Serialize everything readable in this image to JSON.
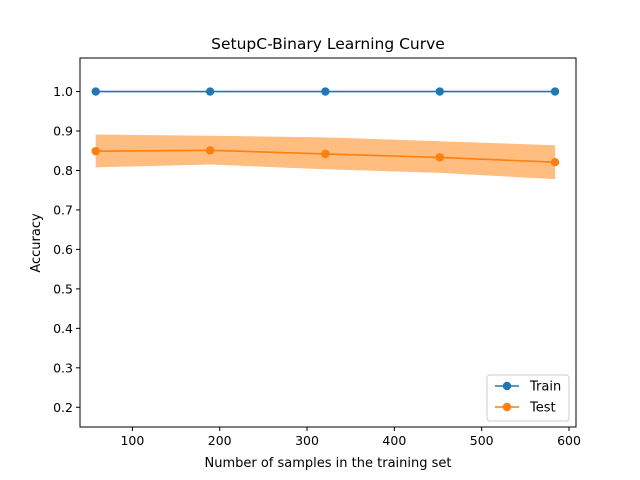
{
  "chart_data": {
    "type": "line",
    "title": "SetupC-Binary Learning Curve",
    "xlabel": "Number of samples in the training set",
    "ylabel": "Accuracy",
    "xlim": [
      40,
      608
    ],
    "ylim": [
      0.15,
      1.085
    ],
    "xticks": [
      100,
      200,
      300,
      400,
      500,
      600
    ],
    "yticks": [
      0.2,
      0.3,
      0.4,
      0.5,
      0.6,
      0.7,
      0.8,
      0.9,
      1.0
    ],
    "ytick_labels": [
      "0.2",
      "0.3",
      "0.4",
      "0.5",
      "0.6",
      "0.7",
      "0.8",
      "0.9",
      "1.0"
    ],
    "grid": false,
    "legend_position": "bottom-right",
    "x": [
      58,
      189,
      321,
      452,
      584
    ],
    "series": [
      {
        "name": "Train",
        "color": "#1f77b4",
        "values": [
          1.0,
          1.0,
          1.0,
          1.0,
          1.0
        ],
        "band_lower": [
          1.0,
          1.0,
          1.0,
          1.0,
          1.0
        ],
        "band_upper": [
          1.0,
          1.0,
          1.0,
          1.0,
          1.0
        ]
      },
      {
        "name": "Test",
        "color": "#ff7f0e",
        "band_color": "#ffbb78",
        "values": [
          0.849,
          0.851,
          0.842,
          0.833,
          0.821
        ],
        "band_lower": [
          0.808,
          0.815,
          0.803,
          0.794,
          0.778
        ],
        "band_upper": [
          0.891,
          0.888,
          0.884,
          0.874,
          0.864
        ]
      }
    ]
  }
}
